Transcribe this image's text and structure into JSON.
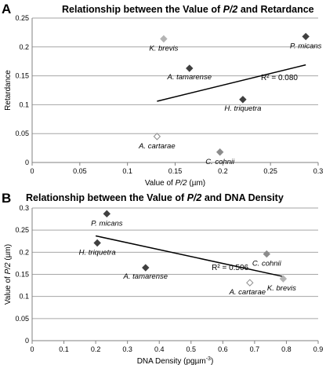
{
  "chart_data": [
    {
      "panel_letter": "A",
      "type": "scatter",
      "title": "Relationship between the Value of P/2 and Retardance",
      "title_prefix": "Relationship between the Value of ",
      "title_italic": "P/2",
      "title_suffix": " and Retardance",
      "xlabel_prefix": "Value of ",
      "xlabel_italic": "P/2",
      "xlabel_suffix": " (µm)",
      "ylabel": "Retardance",
      "xlim": [
        0,
        0.3
      ],
      "ylim": [
        0,
        0.25
      ],
      "xticks": [
        "0",
        "0.05",
        "0.1",
        "0.15",
        "0.2",
        "0.25",
        "0.3"
      ],
      "yticks": [
        "0",
        "0.05",
        "0.1",
        "0.15",
        "0.2",
        "0.25"
      ],
      "grid": "horizontal",
      "points": [
        {
          "label": "K. brevis",
          "x": 0.138,
          "y": 0.214,
          "style": "light"
        },
        {
          "label": "P. micans",
          "x": 0.287,
          "y": 0.218,
          "style": "dark"
        },
        {
          "label": "A. tamarense",
          "x": 0.165,
          "y": 0.163,
          "style": "dark"
        },
        {
          "label": "H. triquetra",
          "x": 0.221,
          "y": 0.109,
          "style": "dark"
        },
        {
          "label": "A. cartarae",
          "x": 0.131,
          "y": 0.045,
          "style": "open"
        },
        {
          "label": "C. cohnii",
          "x": 0.197,
          "y": 0.018,
          "style": "mid"
        }
      ],
      "trendline": {
        "x": [
          0.131,
          0.287
        ],
        "y": [
          0.106,
          0.169
        ]
      },
      "r2_label": "R² = 0.080"
    },
    {
      "panel_letter": "B",
      "type": "scatter",
      "title": "Relationship between the Value of P/2 and DNA Density",
      "title_prefix": "Relationship between the Value of ",
      "title_italic": "P/2",
      "title_suffix": " and DNA Density",
      "xlabel": "DNA Density (pg µm⁻³)",
      "xlabel_text": "DNA Density (pgµm",
      "xlabel_sup": "-3",
      "xlabel_close": ")",
      "ylabel_prefix": "Value of ",
      "ylabel_italic": "P/2",
      "ylabel_suffix": " (µm)",
      "xlim": [
        0,
        0.9
      ],
      "ylim": [
        0,
        0.3
      ],
      "xticks": [
        "0",
        "0.1",
        "0.2",
        "0.3",
        "0.4",
        "0.5",
        "0.6",
        "0.7",
        "0.8",
        "0.9"
      ],
      "yticks": [
        "0",
        "0.05",
        "0.1",
        "0.15",
        "0.2",
        "0.25",
        "0.3"
      ],
      "grid": "horizontal",
      "points": [
        {
          "label": "P. micans",
          "x": 0.235,
          "y": 0.287,
          "style": "dark"
        },
        {
          "label": "H. triquetra",
          "x": 0.205,
          "y": 0.221,
          "style": "dark"
        },
        {
          "label": "C. cohnii",
          "x": 0.738,
          "y": 0.196,
          "style": "mid"
        },
        {
          "label": "A. tamarense",
          "x": 0.357,
          "y": 0.165,
          "style": "dark"
        },
        {
          "label": "A. cartarae",
          "x": 0.685,
          "y": 0.131,
          "style": "open"
        },
        {
          "label": "K. brevis",
          "x": 0.79,
          "y": 0.14,
          "style": "light"
        }
      ],
      "trendline": {
        "x": [
          0.2,
          0.79
        ],
        "y": [
          0.237,
          0.145
        ]
      },
      "r2_label": "R² = 0.506"
    }
  ],
  "colors": {
    "dark": "#404040",
    "mid": "#8c8c8c",
    "light": "#b4b4b4",
    "open_stroke": "#8c8c8c",
    "grid": "#a6a6a6",
    "axis": "#808080",
    "text": "#000000"
  }
}
